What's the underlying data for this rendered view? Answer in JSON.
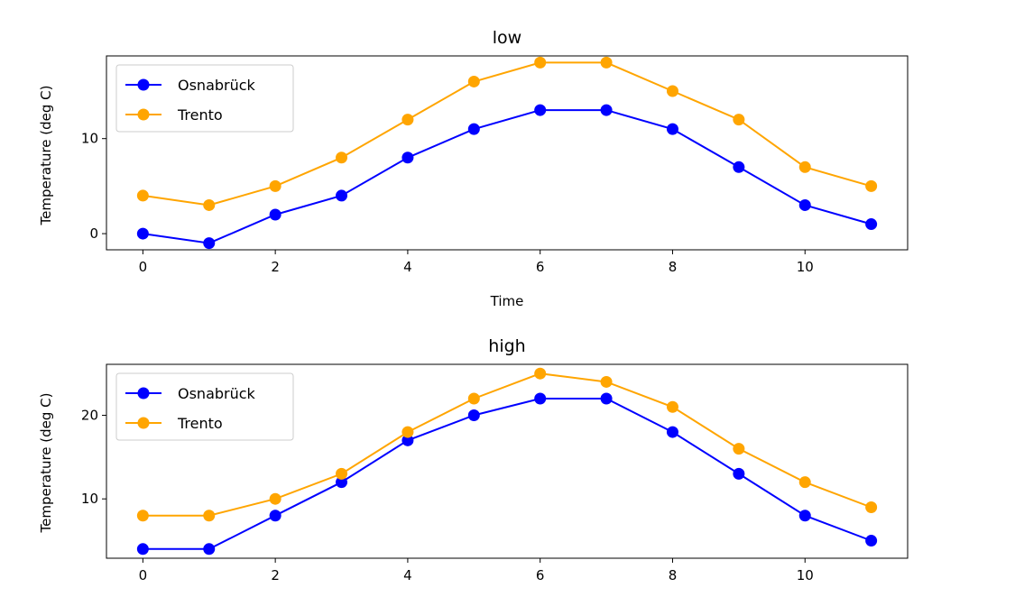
{
  "chart_data": [
    {
      "type": "line",
      "title": "low",
      "xlabel": "Time",
      "ylabel": "Temperature (deg C)",
      "xlim": [
        -0.55,
        11.55
      ],
      "ylim": [
        -1.7,
        18.7
      ],
      "xticks": [
        0,
        2,
        4,
        6,
        8,
        10
      ],
      "yticks": [
        0,
        10
      ],
      "legend": "top-left",
      "grid": false,
      "x": [
        0,
        1,
        2,
        3,
        4,
        5,
        6,
        7,
        8,
        9,
        10,
        11
      ],
      "series": [
        {
          "name": "Osnabrück",
          "color": "#0000ff",
          "values": [
            0,
            -1,
            2,
            4,
            8,
            11,
            13,
            13,
            11,
            7,
            3,
            1
          ]
        },
        {
          "name": "Trento",
          "color": "#ffa500",
          "values": [
            4,
            3,
            5,
            8,
            12,
            16,
            18,
            18,
            15,
            12,
            7,
            5
          ]
        }
      ]
    },
    {
      "type": "line",
      "title": "high",
      "xlabel": "",
      "ylabel": "Temperature (deg C)",
      "xlim": [
        -0.55,
        11.55
      ],
      "ylim": [
        2.9,
        26.1
      ],
      "xticks": [
        0,
        2,
        4,
        6,
        8,
        10
      ],
      "yticks": [
        10,
        20
      ],
      "legend": "top-left",
      "grid": false,
      "x": [
        0,
        1,
        2,
        3,
        4,
        5,
        6,
        7,
        8,
        9,
        10,
        11
      ],
      "series": [
        {
          "name": "Osnabrück",
          "color": "#0000ff",
          "values": [
            4,
            4,
            8,
            12,
            17,
            20,
            22,
            22,
            18,
            13,
            8,
            5
          ]
        },
        {
          "name": "Trento",
          "color": "#ffa500",
          "values": [
            8,
            8,
            10,
            13,
            18,
            22,
            25,
            24,
            21,
            16,
            12,
            9
          ]
        }
      ]
    }
  ]
}
